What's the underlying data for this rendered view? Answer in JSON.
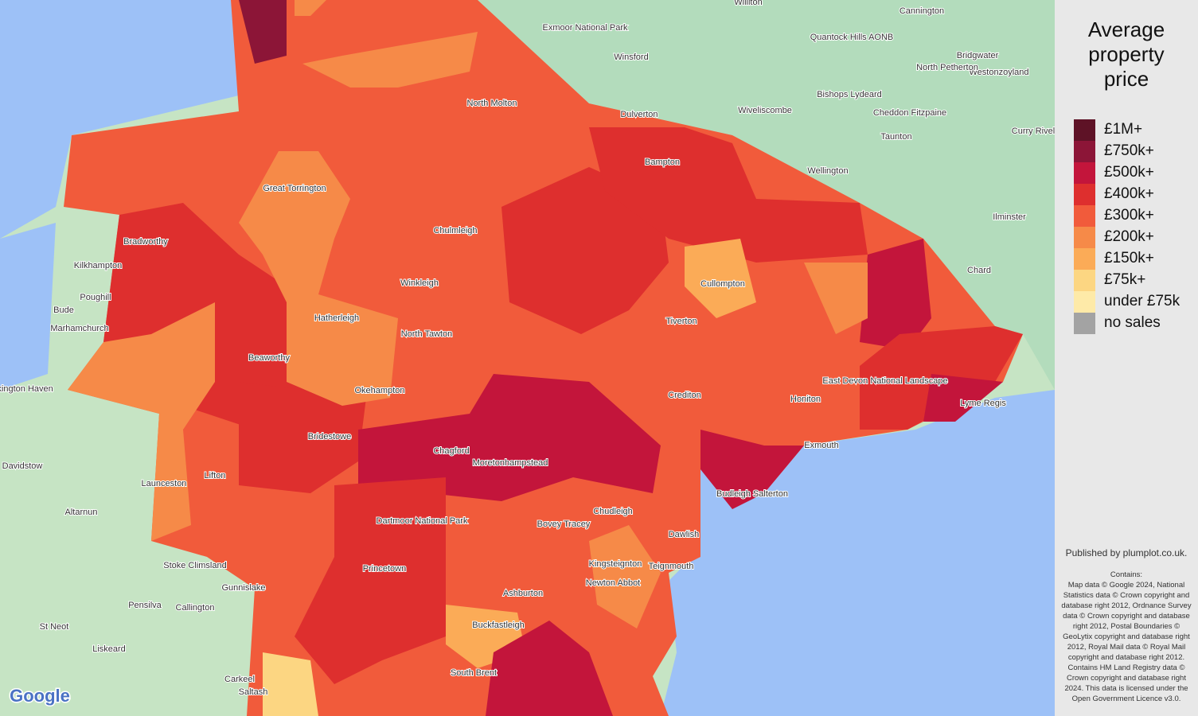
{
  "legend": {
    "title": "Average property price",
    "items": [
      {
        "label": "£1M+",
        "color": "#5e1226"
      },
      {
        "label": "£750k+",
        "color": "#8c1537"
      },
      {
        "label": "£500k+",
        "color": "#c3153b"
      },
      {
        "label": "£400k+",
        "color": "#de2f2e"
      },
      {
        "label": "£300k+",
        "color": "#f15b3b"
      },
      {
        "label": "£200k+",
        "color": "#f68a48"
      },
      {
        "label": "£150k+",
        "color": "#fbab57"
      },
      {
        "label": "£75k+",
        "color": "#fcd682"
      },
      {
        "label": "under £75k",
        "color": "#feeaa8"
      },
      {
        "label": "no sales",
        "color": "#a3a3a3"
      }
    ]
  },
  "footer": {
    "publisher": "Published by plumplot.co.uk.",
    "contains": "Contains:",
    "credits": "Map data © Google 2024, National Statistics data © Crown copyright and database right 2012, Ordnance Survey data © Crown copyright and database right 2012, Postal Boundaries © GeoLytix copyright and database right 2012, Royal Mail data © Royal Mail copyright and database right 2012. Contains HM Land Registry data © Crown copyright and database right 2024. This data is licensed under the Open Government Licence v3.0.",
    "logo": "Google"
  },
  "places": [
    "Exmoor National Park",
    "Winsford",
    "Dulverton",
    "Williton",
    "Cannington",
    "Bridgwater",
    "Westonzoyland",
    "North Petherton",
    "Quantock Hills AONB",
    "Bishops Lydeard",
    "Wiveliscombe",
    "Cheddon Fitzpaine",
    "Taunton",
    "Wellington",
    "Ilminster",
    "Chard",
    "Curry Rivel",
    "Kilkhampton",
    "Poughill",
    "Bude",
    "Marhamchurch",
    "Crackington Haven",
    "Davidstow",
    "Altarnun",
    "Launceston",
    "Stoke Climsland",
    "Callington",
    "Pensilva",
    "St Neot",
    "Liskeard",
    "Carkeel",
    "Saltash",
    "Gunnislake",
    "North Molton",
    "Bampton",
    "Chulmleigh",
    "Winkleigh",
    "North Tawton",
    "Bridestowe",
    "Chagford",
    "Moretonhampstead",
    "Princetown",
    "Dartmoor National Park",
    "Bovey Tracey",
    "Ashburton",
    "Buckfastleigh",
    "South Brent",
    "Teignmouth",
    "Dawlish",
    "Exmouth",
    "Budleigh Salterton",
    "Lyme Regis",
    "East Devon National Landscape",
    "Crediton",
    "Tiverton",
    "Cullompton",
    "Honiton",
    "Bradworthy",
    "Beaworthy",
    "Lifton",
    "Great Torrington",
    "Hatherleigh",
    "Okehampton",
    "Chudleigh",
    "Newton Abbot",
    "Kingsteignton"
  ]
}
